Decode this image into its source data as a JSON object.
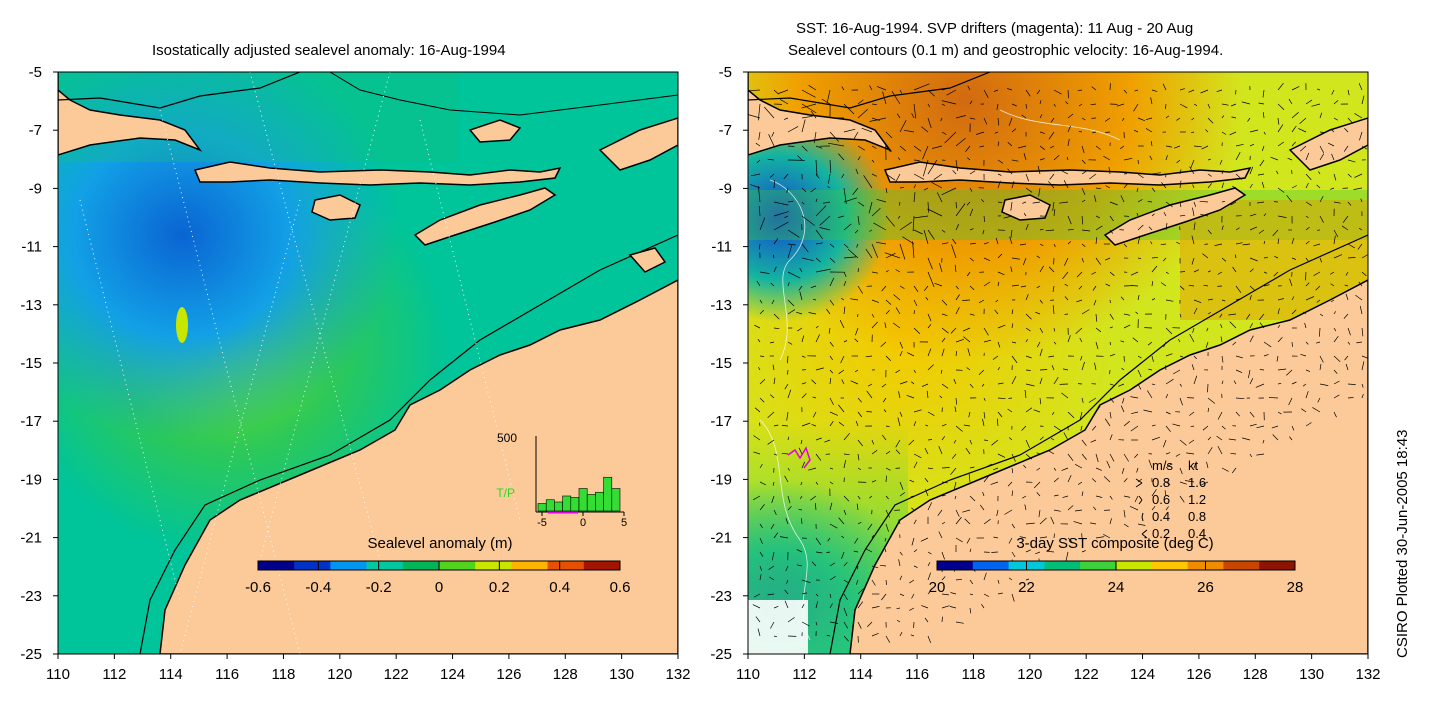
{
  "left_title": "Isostatically adjusted sealevel anomaly: 16-Aug-1994",
  "right_title_line1": "SST: 16-Aug-1994. SVP drifters (magenta): 11 Aug - 20 Aug",
  "right_title_line2": "Sealevel contours (0.1 m) and geostrophic velocity: 16-Aug-1994.",
  "side_label": "CSIRO Plotted 30-Jun-2005 18:43",
  "axes": {
    "x_ticks": [
      "110",
      "112",
      "114",
      "116",
      "118",
      "120",
      "122",
      "124",
      "126",
      "128",
      "130",
      "132"
    ],
    "y_ticks": [
      "-5",
      "-7",
      "-9",
      "-11",
      "-13",
      "-15",
      "-17",
      "-19",
      "-21",
      "-23",
      "-25"
    ]
  },
  "left_colorbar": {
    "label": "Sealevel anomaly (m)",
    "ticks": [
      "-0.6",
      "-0.4",
      "-0.2",
      "0",
      "0.2",
      "0.4",
      "0.6"
    ],
    "colors": [
      "#00008c",
      "#0032c8",
      "#0096f0",
      "#00c8a0",
      "#00b45a",
      "#50d21e",
      "#c8e600",
      "#ffb400",
      "#e65000",
      "#a01400"
    ]
  },
  "right_colorbar": {
    "label": "3-day SST composite (deg C)",
    "ticks": [
      "20",
      "22",
      "24",
      "26",
      "28"
    ],
    "colors": [
      "#00008c",
      "#0064f0",
      "#00c8dc",
      "#00be78",
      "#3cd23c",
      "#c8e600",
      "#ffc800",
      "#f08c00",
      "#c84600",
      "#8c1400"
    ]
  },
  "histogram": {
    "ymax_label": "500",
    "series_label": "T/P",
    "x_ticks": [
      "-5",
      "0",
      "5"
    ],
    "bars": [
      0.1,
      0.15,
      0.12,
      0.2,
      0.18,
      0.3,
      0.22,
      0.25,
      0.45,
      0.3
    ]
  },
  "velocity_legend": {
    "header_ms": "m/s",
    "header_kt": "kt",
    "rows": [
      {
        "ms": "0.8",
        "kt": "1.6"
      },
      {
        "ms": "0.6",
        "kt": "1.2"
      },
      {
        "ms": "0.4",
        "kt": "0.8"
      },
      {
        "ms": "0.2",
        "kt": "0.4"
      }
    ]
  },
  "colors": {
    "land": "#fcca98",
    "ocean_sla": "#00c49a",
    "ocean_sst": "#d2e61e",
    "coast": "#000000"
  }
}
